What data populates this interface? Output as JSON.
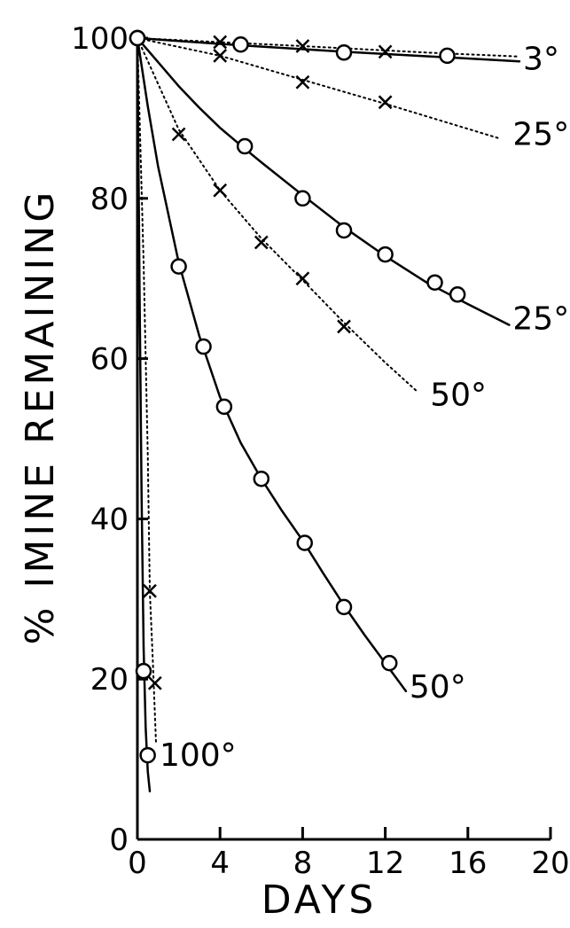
{
  "chart_data": {
    "type": "line",
    "xlabel": "DAYS",
    "ylabel": "% IMINE REMAINING",
    "xlim": [
      0,
      20
    ],
    "ylim": [
      0,
      100
    ],
    "x_ticks": [
      0,
      4,
      8,
      12,
      16,
      20
    ],
    "y_ticks": [
      0,
      20,
      40,
      60,
      80,
      100
    ],
    "x_tick_labels": [
      "0",
      "4",
      "8",
      "12",
      "16",
      "20"
    ],
    "y_tick_labels": [
      "0",
      "20",
      "40",
      "60",
      "80",
      "100"
    ],
    "grid": false,
    "legend": "none",
    "series": [
      {
        "name": "3°",
        "marker": "circle",
        "line": "solid",
        "points": [
          [
            0,
            100
          ],
          [
            5,
            99.2
          ],
          [
            10,
            98.2
          ],
          [
            15,
            97.8
          ]
        ],
        "curve": [
          [
            0,
            100
          ],
          [
            5,
            99.1
          ],
          [
            10,
            98.3
          ],
          [
            15,
            97.6
          ],
          [
            18.5,
            97.1
          ]
        ]
      },
      {
        "name": "",
        "marker": "x",
        "line": "dotted",
        "points": [
          [
            4,
            99.5
          ],
          [
            8,
            99
          ],
          [
            12,
            98.3
          ]
        ],
        "curve": [
          [
            0,
            100
          ],
          [
            8,
            99
          ],
          [
            14,
            98.2
          ],
          [
            18.5,
            97.7
          ]
        ]
      },
      {
        "name": "25°",
        "marker": "x",
        "line": "dotted",
        "points": [
          [
            4,
            97.8
          ],
          [
            8,
            94.5
          ],
          [
            12,
            92
          ]
        ],
        "curve": [
          [
            0,
            100
          ],
          [
            4,
            97.8
          ],
          [
            8,
            94.8
          ],
          [
            12,
            91.8
          ],
          [
            17.5,
            87.5
          ]
        ]
      },
      {
        "name": "25°",
        "marker": "circle",
        "line": "solid",
        "points": [
          [
            0,
            100
          ],
          [
            5.2,
            86.5
          ],
          [
            8,
            80
          ],
          [
            10,
            76
          ],
          [
            12,
            73
          ],
          [
            14.4,
            69.5
          ],
          [
            15.5,
            68
          ]
        ],
        "curve": [
          [
            0,
            100
          ],
          [
            1,
            97
          ],
          [
            2,
            94
          ],
          [
            3,
            91.3
          ],
          [
            4,
            88.8
          ],
          [
            5.2,
            86.2
          ],
          [
            6,
            84.5
          ],
          [
            8,
            80.4
          ],
          [
            10,
            76.4
          ],
          [
            12,
            72.8
          ],
          [
            14,
            69.5
          ],
          [
            16,
            66.8
          ],
          [
            18,
            64.2
          ]
        ]
      },
      {
        "name": "50°",
        "marker": "x",
        "line": "dotted",
        "points": [
          [
            2,
            88
          ],
          [
            4,
            81
          ],
          [
            6,
            74.5
          ],
          [
            8,
            70
          ],
          [
            10,
            64
          ]
        ],
        "curve": [
          [
            0,
            100
          ],
          [
            2,
            88.6
          ],
          [
            4,
            81
          ],
          [
            6,
            75
          ],
          [
            8,
            69.8
          ],
          [
            10,
            64.5
          ],
          [
            12,
            59.5
          ],
          [
            13.5,
            56
          ]
        ]
      },
      {
        "name": "50°",
        "marker": "circle",
        "line": "solid",
        "points": [
          [
            0,
            100
          ],
          [
            2,
            71.5
          ],
          [
            3.2,
            61.5
          ],
          [
            4.2,
            54
          ],
          [
            6,
            45
          ],
          [
            8.1,
            37
          ],
          [
            10,
            29
          ],
          [
            12.2,
            22
          ]
        ],
        "curve": [
          [
            0,
            100
          ],
          [
            0.5,
            91.5
          ],
          [
            1,
            84
          ],
          [
            2,
            72
          ],
          [
            3,
            62.8
          ],
          [
            4,
            55.2
          ],
          [
            5,
            49.5
          ],
          [
            6,
            45
          ],
          [
            7,
            41
          ],
          [
            8,
            37.3
          ],
          [
            9,
            33.2
          ],
          [
            10,
            29.2
          ],
          [
            11,
            25.5
          ],
          [
            12,
            22
          ],
          [
            13,
            18.5
          ]
        ]
      },
      {
        "name": "100°",
        "marker": "circle",
        "line": "solid",
        "points": [
          [
            0.3,
            21
          ],
          [
            0.5,
            10.5
          ]
        ],
        "curve": [
          [
            0,
            100
          ],
          [
            0.1,
            70
          ],
          [
            0.2,
            43
          ],
          [
            0.3,
            24
          ],
          [
            0.4,
            14
          ],
          [
            0.5,
            8.5
          ],
          [
            0.6,
            6
          ]
        ]
      },
      {
        "name": "",
        "marker": "x",
        "line": "dotted",
        "points": [
          [
            0.6,
            31
          ],
          [
            0.85,
            19.5
          ]
        ],
        "curve": [
          [
            0,
            100
          ],
          [
            0.3,
            72
          ],
          [
            0.5,
            48
          ],
          [
            0.6,
            31
          ],
          [
            0.75,
            22
          ],
          [
            0.9,
            12
          ]
        ]
      }
    ],
    "labels": [
      {
        "text": "3°",
        "x": 18.5,
        "y": 97.4
      },
      {
        "text": "25°",
        "x": 18,
        "y": 88
      },
      {
        "text": "25°",
        "x": 18,
        "y": 65
      },
      {
        "text": "50°",
        "x": 14,
        "y": 55.5
      },
      {
        "text": "50°",
        "x": 13,
        "y": 19
      },
      {
        "text": "100°",
        "x": 0.9,
        "y": 10.5
      }
    ]
  }
}
